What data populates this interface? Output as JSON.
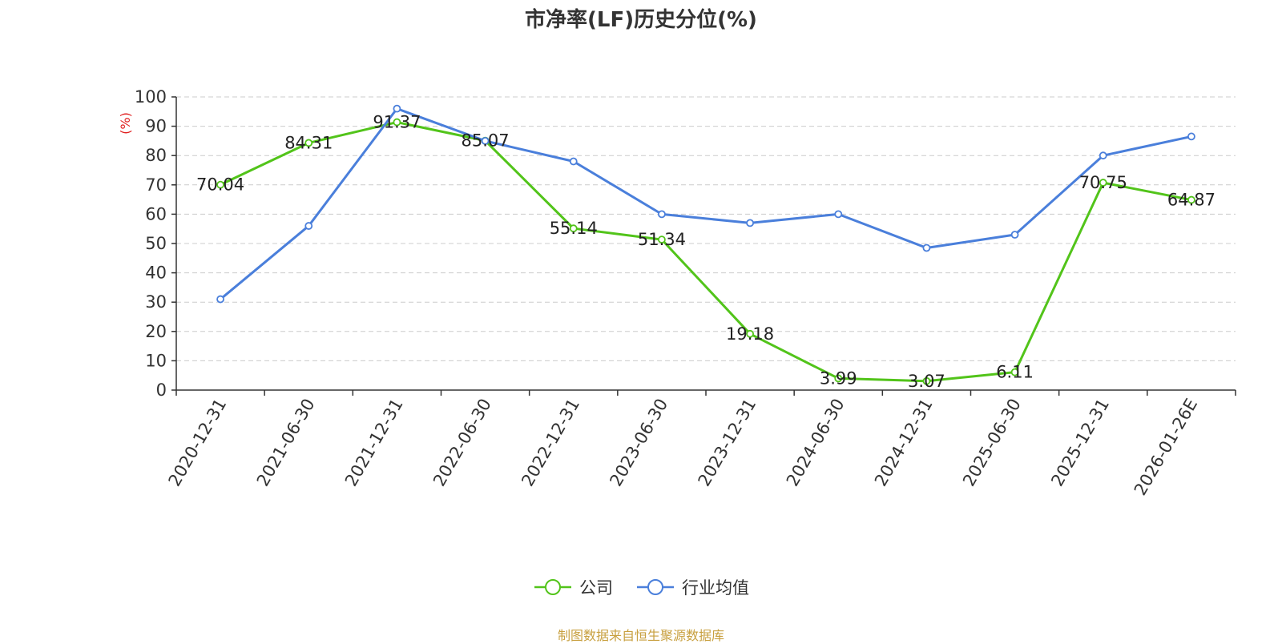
{
  "chart_data": {
    "type": "line",
    "title": "市净率(LF)历史分位(%)",
    "ylabel": "(%)",
    "ylim": [
      0,
      100
    ],
    "yticks": [
      0,
      10,
      20,
      30,
      40,
      50,
      60,
      70,
      80,
      90,
      100
    ],
    "grid": true,
    "legend_position": "bottom",
    "categories": [
      "2020-12-31",
      "2021-06-30",
      "2021-12-31",
      "2022-06-30",
      "2022-12-31",
      "2023-06-30",
      "2023-12-31",
      "2024-06-30",
      "2024-12-31",
      "2025-06-30",
      "2025-12-31",
      "2026-01-26E"
    ],
    "series": [
      {
        "name": "公司",
        "color": "#52c41a",
        "values": [
          70.04,
          84.31,
          91.37,
          85.07,
          55.14,
          51.34,
          19.18,
          3.99,
          3.07,
          6.11,
          70.75,
          64.87
        ],
        "labels": [
          "70.04",
          "84.31",
          "91.37",
          "85.07",
          "55.14",
          "51.34",
          "19.18",
          "3.99",
          "3.07",
          "6.11",
          "70.75",
          "64.87"
        ]
      },
      {
        "name": "行业均值",
        "color": "#4a7fdb",
        "values": [
          31,
          56,
          96,
          85,
          78,
          60,
          57,
          60,
          48.5,
          53,
          80,
          86.5
        ]
      }
    ]
  },
  "source": "制图数据来自恒生聚源数据库",
  "colors": {
    "ylabel": "#e02020",
    "axis": "#333333",
    "grid": "#cccccc",
    "source": "#c8a040"
  }
}
